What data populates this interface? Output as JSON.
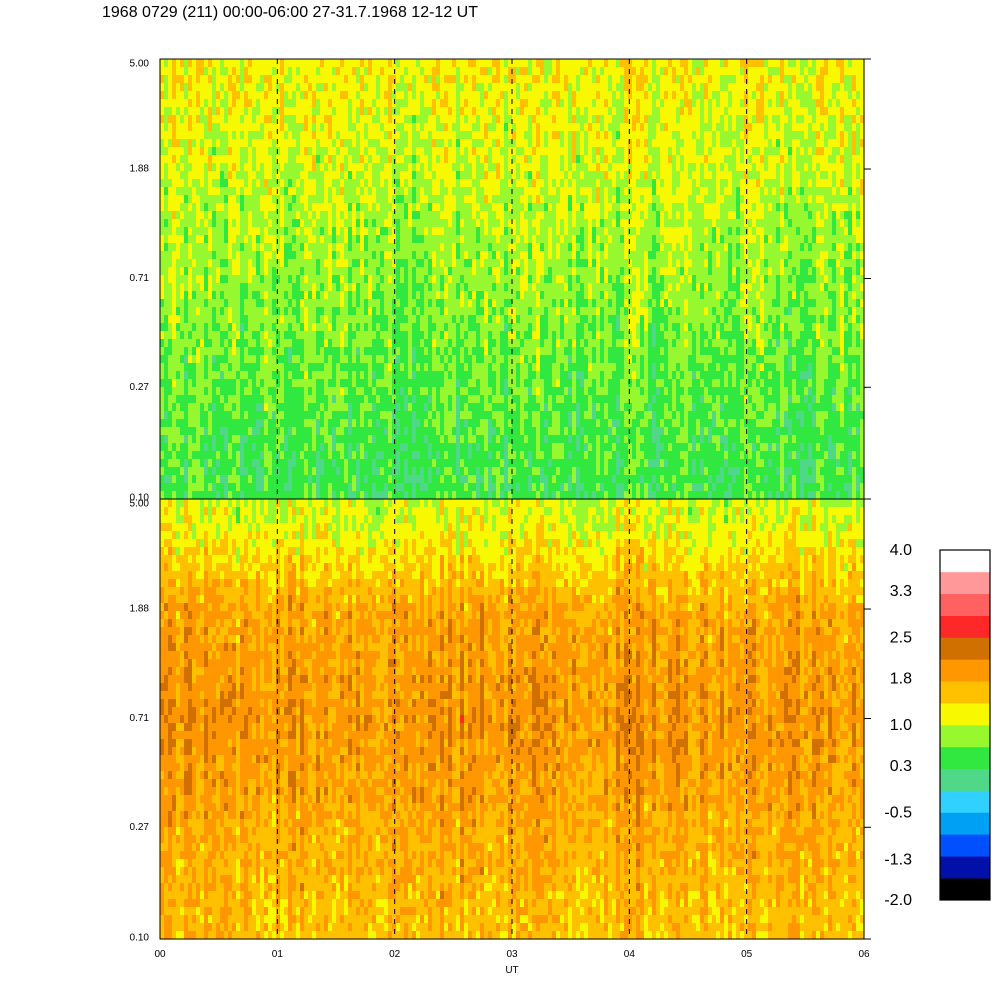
{
  "title": "1968 0729 (211) 00:00-06:00 27-31.7.1968  12-12 UT",
  "chart_data": {
    "type": "heatmap",
    "panels": [
      {
        "id": "upper",
        "y_scale": "log",
        "ylim": [
          0.1,
          5.0
        ],
        "y_ticks": [
          "0.10",
          "0.27",
          "0.71",
          "1.88",
          "5.00"
        ],
        "palette_range": [
          0.2,
          0.95
        ],
        "bands": [
          {
            "y": 4.2,
            "level": 1.2
          },
          {
            "y": 1.8,
            "level": 1.0
          },
          {
            "y": 0.71,
            "level": 0.8
          },
          {
            "y": 0.12,
            "level": 0.4
          }
        ]
      },
      {
        "id": "lower",
        "y_scale": "log",
        "ylim": [
          0.1,
          5.0
        ],
        "y_ticks": [
          "0.10",
          "0.27",
          "0.71",
          "1.88",
          "5.00"
        ],
        "palette_range": [
          0.9,
          2.2
        ],
        "bands": [
          {
            "y": 4.2,
            "level": 1.1
          },
          {
            "y": 1.88,
            "level": 1.8
          },
          {
            "y": 0.71,
            "level": 2.0
          },
          {
            "y": 0.12,
            "level": 1.6
          }
        ]
      }
    ],
    "x_ticks": [
      "00",
      "01",
      "02",
      "03",
      "04",
      "05",
      "06"
    ],
    "xlim": [
      0,
      6
    ],
    "xlabel": "UT",
    "dashed_verticals": [
      1,
      2,
      3,
      4,
      5
    ],
    "colorbar": {
      "labels": [
        "4.0",
        "3.3",
        "2.5",
        "1.8",
        "1.0",
        "0.3",
        "-0.5",
        "-1.3",
        "-2.0"
      ],
      "min": -2.0,
      "max": 4.0,
      "colors": [
        "#000000",
        "#0010a8",
        "#0050ff",
        "#00a0f5",
        "#30d0ff",
        "#4ed888",
        "#30e840",
        "#98f830",
        "#f8f800",
        "#ffc000",
        "#ff9800",
        "#d07000",
        "#ff2828",
        "#ff6060",
        "#ff9898",
        "#ffffff"
      ]
    }
  }
}
